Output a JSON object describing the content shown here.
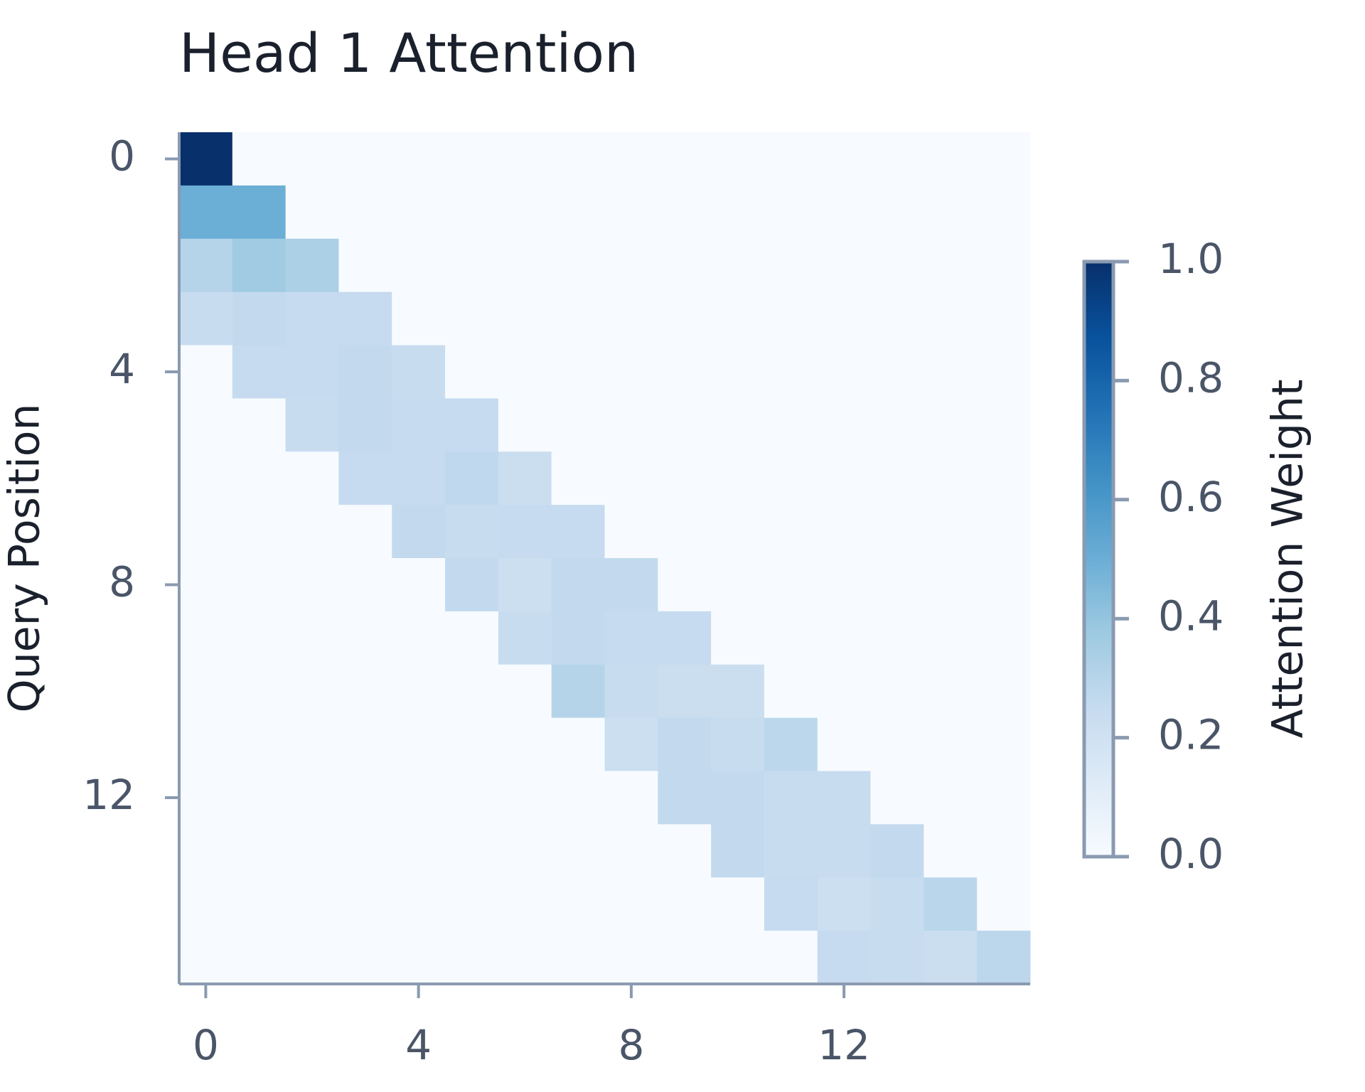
{
  "chart_data": {
    "type": "heatmap",
    "title": "Head 1 Attention",
    "ylabel": "Query Position",
    "colorbar_label": "Attention Weight",
    "xlim": [
      -0.5,
      15.5
    ],
    "ylim": [
      -0.5,
      15.5
    ],
    "y_inverted": true,
    "xticks": [
      0,
      4,
      8,
      12
    ],
    "yticks": [
      0,
      4,
      8,
      12
    ],
    "zlim": [
      0,
      1
    ],
    "zticks": [
      {
        "value": 0,
        "label": "0.0"
      },
      0.2,
      0.4,
      0.6,
      0.8,
      {
        "value": 1,
        "label": "1.0"
      }
    ],
    "colorscale": [
      "#f7fbff",
      "#deebf7",
      "#c6dbef",
      "#9ecae1",
      "#6baed6",
      "#4292c6",
      "#2171b5",
      "#08519c",
      "#08306b"
    ],
    "z": [
      [
        1,
        0,
        0,
        0,
        0,
        0,
        0,
        0,
        0,
        0,
        0,
        0,
        0,
        0,
        0,
        0
      ],
      [
        0.5,
        0.5,
        0,
        0,
        0,
        0,
        0,
        0,
        0,
        0,
        0,
        0,
        0,
        0,
        0,
        0
      ],
      [
        0.3,
        0.37,
        0.33,
        0,
        0,
        0,
        0,
        0,
        0,
        0,
        0,
        0,
        0,
        0,
        0,
        0
      ],
      [
        0.24,
        0.26,
        0.25,
        0.25,
        0,
        0,
        0,
        0,
        0,
        0,
        0,
        0,
        0,
        0,
        0,
        0
      ],
      [
        0,
        0.25,
        0.25,
        0.26,
        0.24,
        0,
        0,
        0,
        0,
        0,
        0,
        0,
        0,
        0,
        0,
        0
      ],
      [
        0,
        0,
        0.24,
        0.26,
        0.25,
        0.25,
        0,
        0,
        0,
        0,
        0,
        0,
        0,
        0,
        0,
        0
      ],
      [
        0,
        0,
        0,
        0.25,
        0.25,
        0.27,
        0.23,
        0,
        0,
        0,
        0,
        0,
        0,
        0,
        0,
        0
      ],
      [
        0,
        0,
        0,
        0,
        0.26,
        0.24,
        0.25,
        0.25,
        0,
        0,
        0,
        0,
        0,
        0,
        0,
        0
      ],
      [
        0,
        0,
        0,
        0,
        0,
        0.26,
        0.22,
        0.26,
        0.26,
        0,
        0,
        0,
        0,
        0,
        0,
        0
      ],
      [
        0,
        0,
        0,
        0,
        0,
        0,
        0.24,
        0.26,
        0.25,
        0.25,
        0,
        0,
        0,
        0,
        0,
        0
      ],
      [
        0,
        0,
        0,
        0,
        0,
        0,
        0,
        0.3,
        0.24,
        0.23,
        0.23,
        0,
        0,
        0,
        0,
        0
      ],
      [
        0,
        0,
        0,
        0,
        0,
        0,
        0,
        0,
        0.22,
        0.26,
        0.24,
        0.28,
        0,
        0,
        0,
        0
      ],
      [
        0,
        0,
        0,
        0,
        0,
        0,
        0,
        0,
        0,
        0.26,
        0.26,
        0.24,
        0.24,
        0,
        0,
        0
      ],
      [
        0,
        0,
        0,
        0,
        0,
        0,
        0,
        0,
        0,
        0,
        0.26,
        0.24,
        0.24,
        0.26,
        0,
        0
      ],
      [
        0,
        0,
        0,
        0,
        0,
        0,
        0,
        0,
        0,
        0,
        0,
        0.25,
        0.22,
        0.24,
        0.29,
        0
      ],
      [
        0,
        0,
        0,
        0,
        0,
        0,
        0,
        0,
        0,
        0,
        0,
        0,
        0.25,
        0.24,
        0.23,
        0.28
      ]
    ]
  }
}
